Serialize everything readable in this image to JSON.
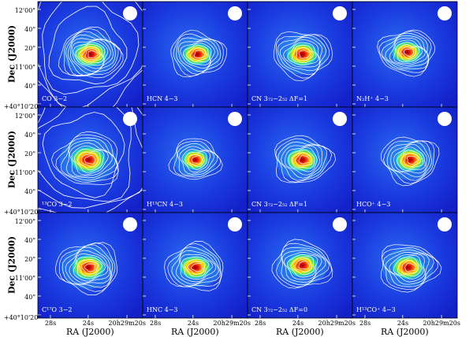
{
  "figure": {
    "panels": [
      {
        "label": "CO 3−2"
      },
      {
        "label": "HCN 4−3"
      },
      {
        "label": "CN 3₇₂−2₅₂ ΔF=1"
      },
      {
        "label": "N₂H⁺ 4−3"
      },
      {
        "label": "¹³CO 3−2"
      },
      {
        "label": "H¹³CN 4−3"
      },
      {
        "label": "CN 3₇₂−2₅₂ ΔF=1"
      },
      {
        "label": "HCO⁺ 4−3"
      },
      {
        "label": "C¹⁷O 3−2"
      },
      {
        "label": "HNC 4−3"
      },
      {
        "label": "CN 3₇₂−2₅₂ ΔF=0"
      },
      {
        "label": "H¹³CO⁺ 4−3"
      }
    ],
    "y_axis": {
      "label": "Dec (J2000)",
      "ticks": [
        "12'00\"",
        "40\"",
        "20\"",
        "11'00\"",
        "40\"",
        "+40°10'20\""
      ]
    },
    "x_axis": {
      "label": "RA (J2000)",
      "ticks": [
        "28s",
        "24s",
        "20h29m20s"
      ]
    },
    "colors": {
      "background": "#1a2bd8",
      "contour": "#ffffff",
      "beam": "#ffffff"
    }
  }
}
